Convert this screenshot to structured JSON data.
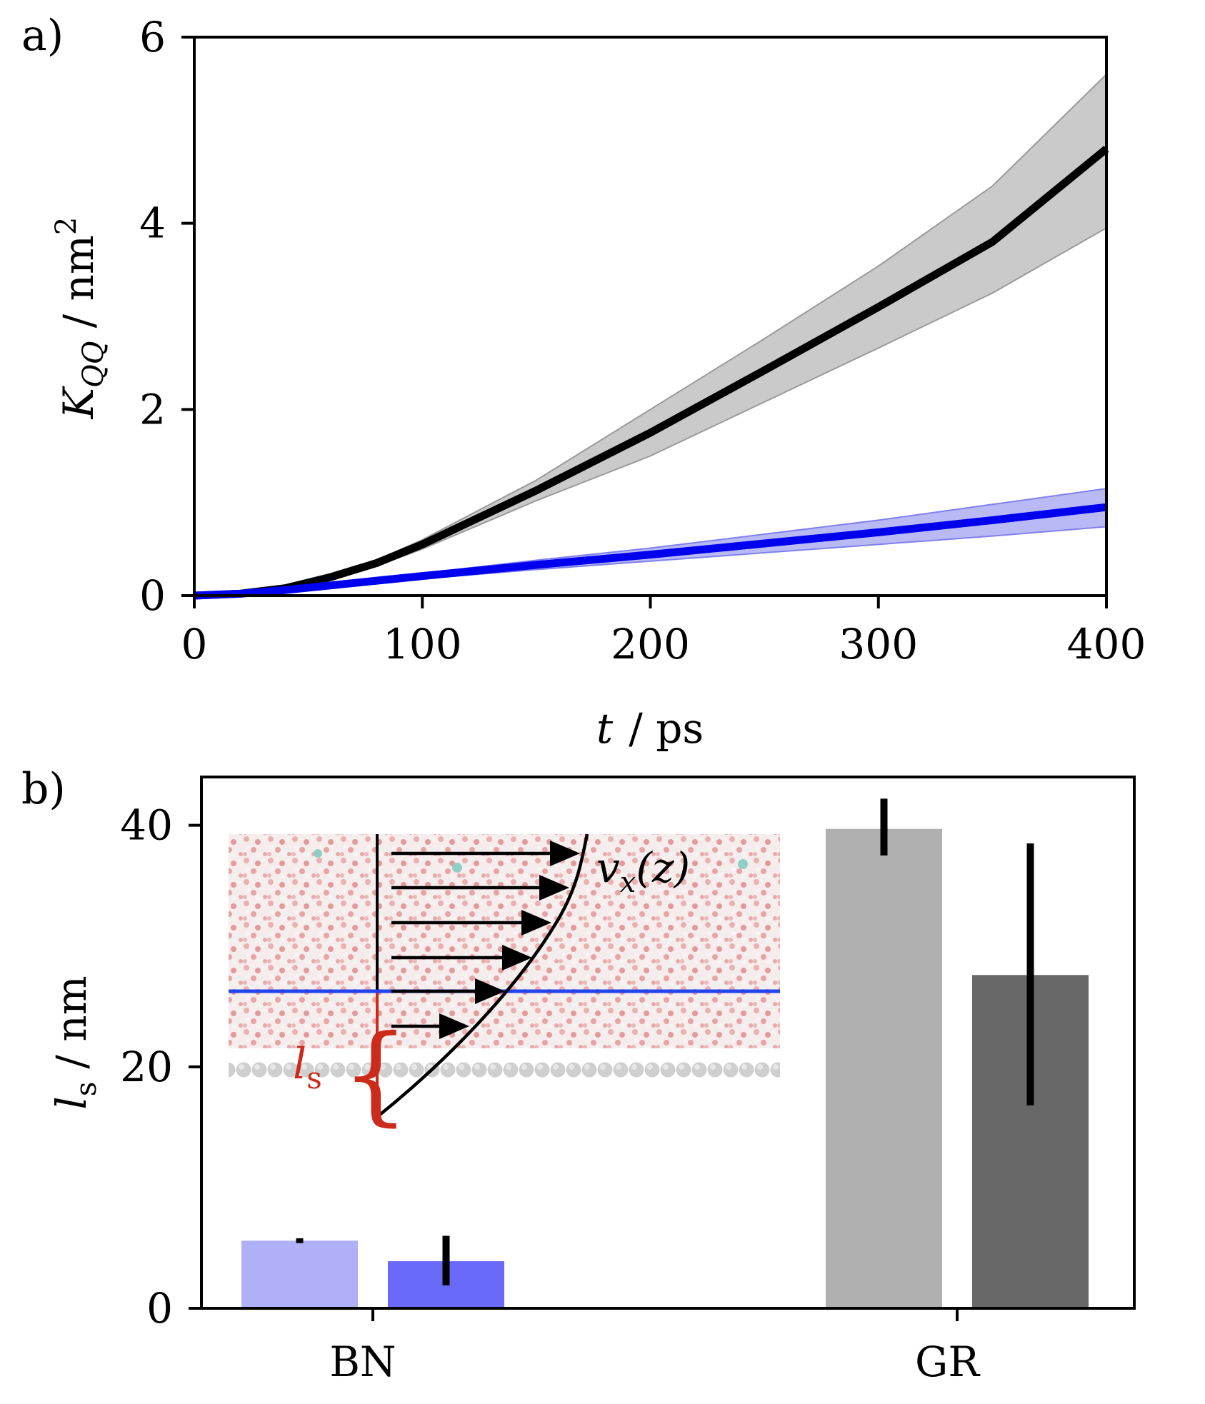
{
  "chart_data": [
    {
      "panel_label": "a)",
      "type": "line",
      "xlabel_italic": "t",
      "xlabel_unit": "/ ps",
      "ylabel_symbol": "K",
      "ylabel_sub": "QQ",
      "ylabel_unit": "/ nm",
      "ylabel_sup": "2",
      "xlim": [
        0,
        400
      ],
      "ylim": [
        0,
        6
      ],
      "xticks": [
        0,
        100,
        200,
        300,
        400
      ],
      "yticks": [
        0,
        2,
        4,
        6
      ],
      "series": [
        {
          "name": "GR",
          "color": "#000000",
          "band_color": "#bdbdbd",
          "x": [
            0,
            20,
            40,
            60,
            80,
            100,
            150,
            200,
            250,
            300,
            350,
            400
          ],
          "y": [
            0,
            0.02,
            0.08,
            0.2,
            0.35,
            0.55,
            1.13,
            1.75,
            2.42,
            3.1,
            3.8,
            4.8
          ],
          "lower": [
            0,
            0.02,
            0.07,
            0.18,
            0.32,
            0.5,
            1.02,
            1.5,
            2.08,
            2.66,
            3.25,
            3.95
          ],
          "upper": [
            0,
            0.02,
            0.09,
            0.22,
            0.38,
            0.6,
            1.24,
            2.0,
            2.76,
            3.54,
            4.4,
            5.6
          ]
        },
        {
          "name": "BN",
          "color": "#0000ee",
          "band_color": "#a8a8f2",
          "x": [
            0,
            20,
            40,
            60,
            80,
            100,
            150,
            200,
            250,
            300,
            350,
            400
          ],
          "y": [
            0,
            0.02,
            0.06,
            0.11,
            0.16,
            0.21,
            0.33,
            0.44,
            0.56,
            0.68,
            0.81,
            0.95
          ],
          "lower": [
            0,
            0.02,
            0.05,
            0.1,
            0.14,
            0.18,
            0.28,
            0.37,
            0.46,
            0.55,
            0.64,
            0.74
          ],
          "upper": [
            0,
            0.02,
            0.07,
            0.12,
            0.18,
            0.24,
            0.38,
            0.51,
            0.66,
            0.81,
            0.98,
            1.15
          ]
        }
      ]
    },
    {
      "panel_label": "b)",
      "type": "bar",
      "categories": [
        "BN",
        "GR"
      ],
      "ylabel_symbol": "l",
      "ylabel_sub": "s",
      "ylabel_unit": "/ nm",
      "ylim": [
        0,
        44
      ],
      "yticks": [
        0,
        20,
        40
      ],
      "bars": [
        {
          "category": "BN",
          "value": 5.6,
          "err_low": 5.4,
          "err_high": 5.8,
          "color": "#b0b0f8"
        },
        {
          "category": "BN",
          "value": 3.9,
          "err_low": 1.9,
          "err_high": 6.0,
          "color": "#6a6afa"
        },
        {
          "category": "GR",
          "value": 39.7,
          "err_low": 37.5,
          "err_high": 42.2,
          "color": "#b0b0b0"
        },
        {
          "category": "GR",
          "value": 27.6,
          "err_low": 16.8,
          "err_high": 38.5,
          "color": "#686868"
        }
      ],
      "inset": {
        "velocity_label": "v",
        "velocity_sub": "x",
        "velocity_arg": "(z)",
        "slip_label": "l",
        "slip_sub": "s",
        "slip_color": "#cc2a1a",
        "line_color": "#2244ee"
      }
    }
  ]
}
